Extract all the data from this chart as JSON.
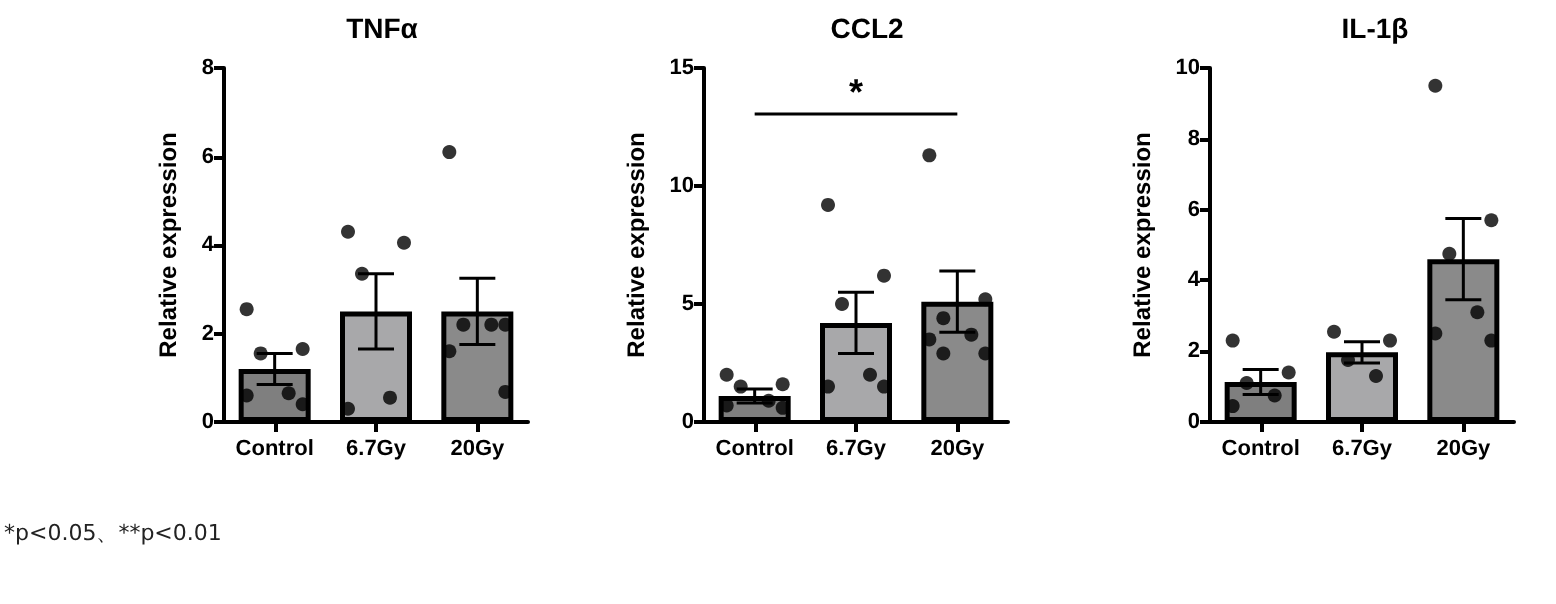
{
  "chart_data": [
    {
      "type": "bar",
      "title": "TNFα",
      "ylabel": "Relative expression",
      "categories": [
        "Control",
        "6.7Gy",
        "20Gy"
      ],
      "ylim": [
        0,
        8
      ],
      "yticks": [
        0,
        2,
        4,
        6,
        8
      ],
      "grid": false,
      "marker": "circle",
      "annotations": [
        "*p<0.05、**p<0.01"
      ],
      "series": [
        {
          "values": [
            1.2,
            2.5,
            2.5
          ],
          "colors": [
            "#7f7f7f",
            "#a8a8aa",
            "#8a8a8a"
          ],
          "errors": [
            0.35,
            0.85,
            0.75
          ]
        },
        {
          "type": "scatter",
          "color": "#000000",
          "x": [
            "Control",
            "Control",
            "Control",
            "Control",
            "Control",
            "Control",
            "6.7Gy",
            "6.7Gy",
            "6.7Gy",
            "6.7Gy",
            "6.7Gy",
            "20Gy",
            "20Gy",
            "20Gy",
            "20Gy",
            "20Gy",
            "20Gy"
          ],
          "values": [
            2.55,
            1.65,
            1.55,
            0.65,
            0.6,
            0.4,
            4.3,
            4.05,
            3.35,
            0.55,
            0.3,
            6.1,
            2.2,
            2.2,
            2.2,
            1.6,
            0.68
          ]
        }
      ]
    },
    {
      "type": "bar",
      "title": "CCL2",
      "ylabel": "Relative expression",
      "categories": [
        "Control",
        "6.7Gy",
        "20Gy"
      ],
      "ylim": [
        0,
        15
      ],
      "yticks": [
        0,
        5,
        10,
        15
      ],
      "grid": false,
      "marker": "circle",
      "annotations": [
        "*"
      ],
      "series": [
        {
          "values": [
            1.1,
            4.2,
            5.1
          ],
          "colors": [
            "#7f7f7f",
            "#a8a8aa",
            "#8a8a8a"
          ],
          "errors": [
            0.3,
            1.3,
            1.3
          ]
        },
        {
          "type": "scatter",
          "color": "#000000",
          "x": [
            "Control",
            "Control",
            "Control",
            "Control",
            "Control",
            "Control",
            "6.7Gy",
            "6.7Gy",
            "6.7Gy",
            "6.7Gy",
            "6.7Gy",
            "6.7Gy",
            "20Gy",
            "20Gy",
            "20Gy",
            "20Gy",
            "20Gy",
            "20Gy",
            "20Gy"
          ],
          "values": [
            2.0,
            1.6,
            1.5,
            0.9,
            0.7,
            0.6,
            9.2,
            6.2,
            5.0,
            2.0,
            1.5,
            1.5,
            11.3,
            5.2,
            4.4,
            3.7,
            3.5,
            2.9,
            2.9
          ]
        }
      ]
    },
    {
      "type": "bar",
      "title": "IL-1β",
      "ylabel": "Relative expression",
      "categories": [
        "Control",
        "6.7Gy",
        "20Gy"
      ],
      "ylim": [
        0,
        10
      ],
      "yticks": [
        0,
        2,
        4,
        6,
        8,
        10
      ],
      "grid": false,
      "marker": "circle",
      "series": [
        {
          "values": [
            1.13,
            1.97,
            4.6
          ],
          "colors": [
            "#7f7f7f",
            "#a8a8aa",
            "#8a8a8a"
          ],
          "errors": [
            0.35,
            0.3,
            1.15
          ]
        },
        {
          "type": "scatter",
          "color": "#000000",
          "x": [
            "Control",
            "Control",
            "Control",
            "Control",
            "Control",
            "6.7Gy",
            "6.7Gy",
            "6.7Gy",
            "6.7Gy",
            "20Gy",
            "20Gy",
            "20Gy",
            "20Gy",
            "20Gy",
            "20Gy"
          ],
          "values": [
            2.3,
            1.4,
            1.1,
            0.75,
            0.45,
            2.55,
            2.3,
            1.75,
            1.3,
            9.5,
            5.7,
            4.75,
            3.1,
            2.5,
            2.3
          ]
        }
      ]
    }
  ]
}
